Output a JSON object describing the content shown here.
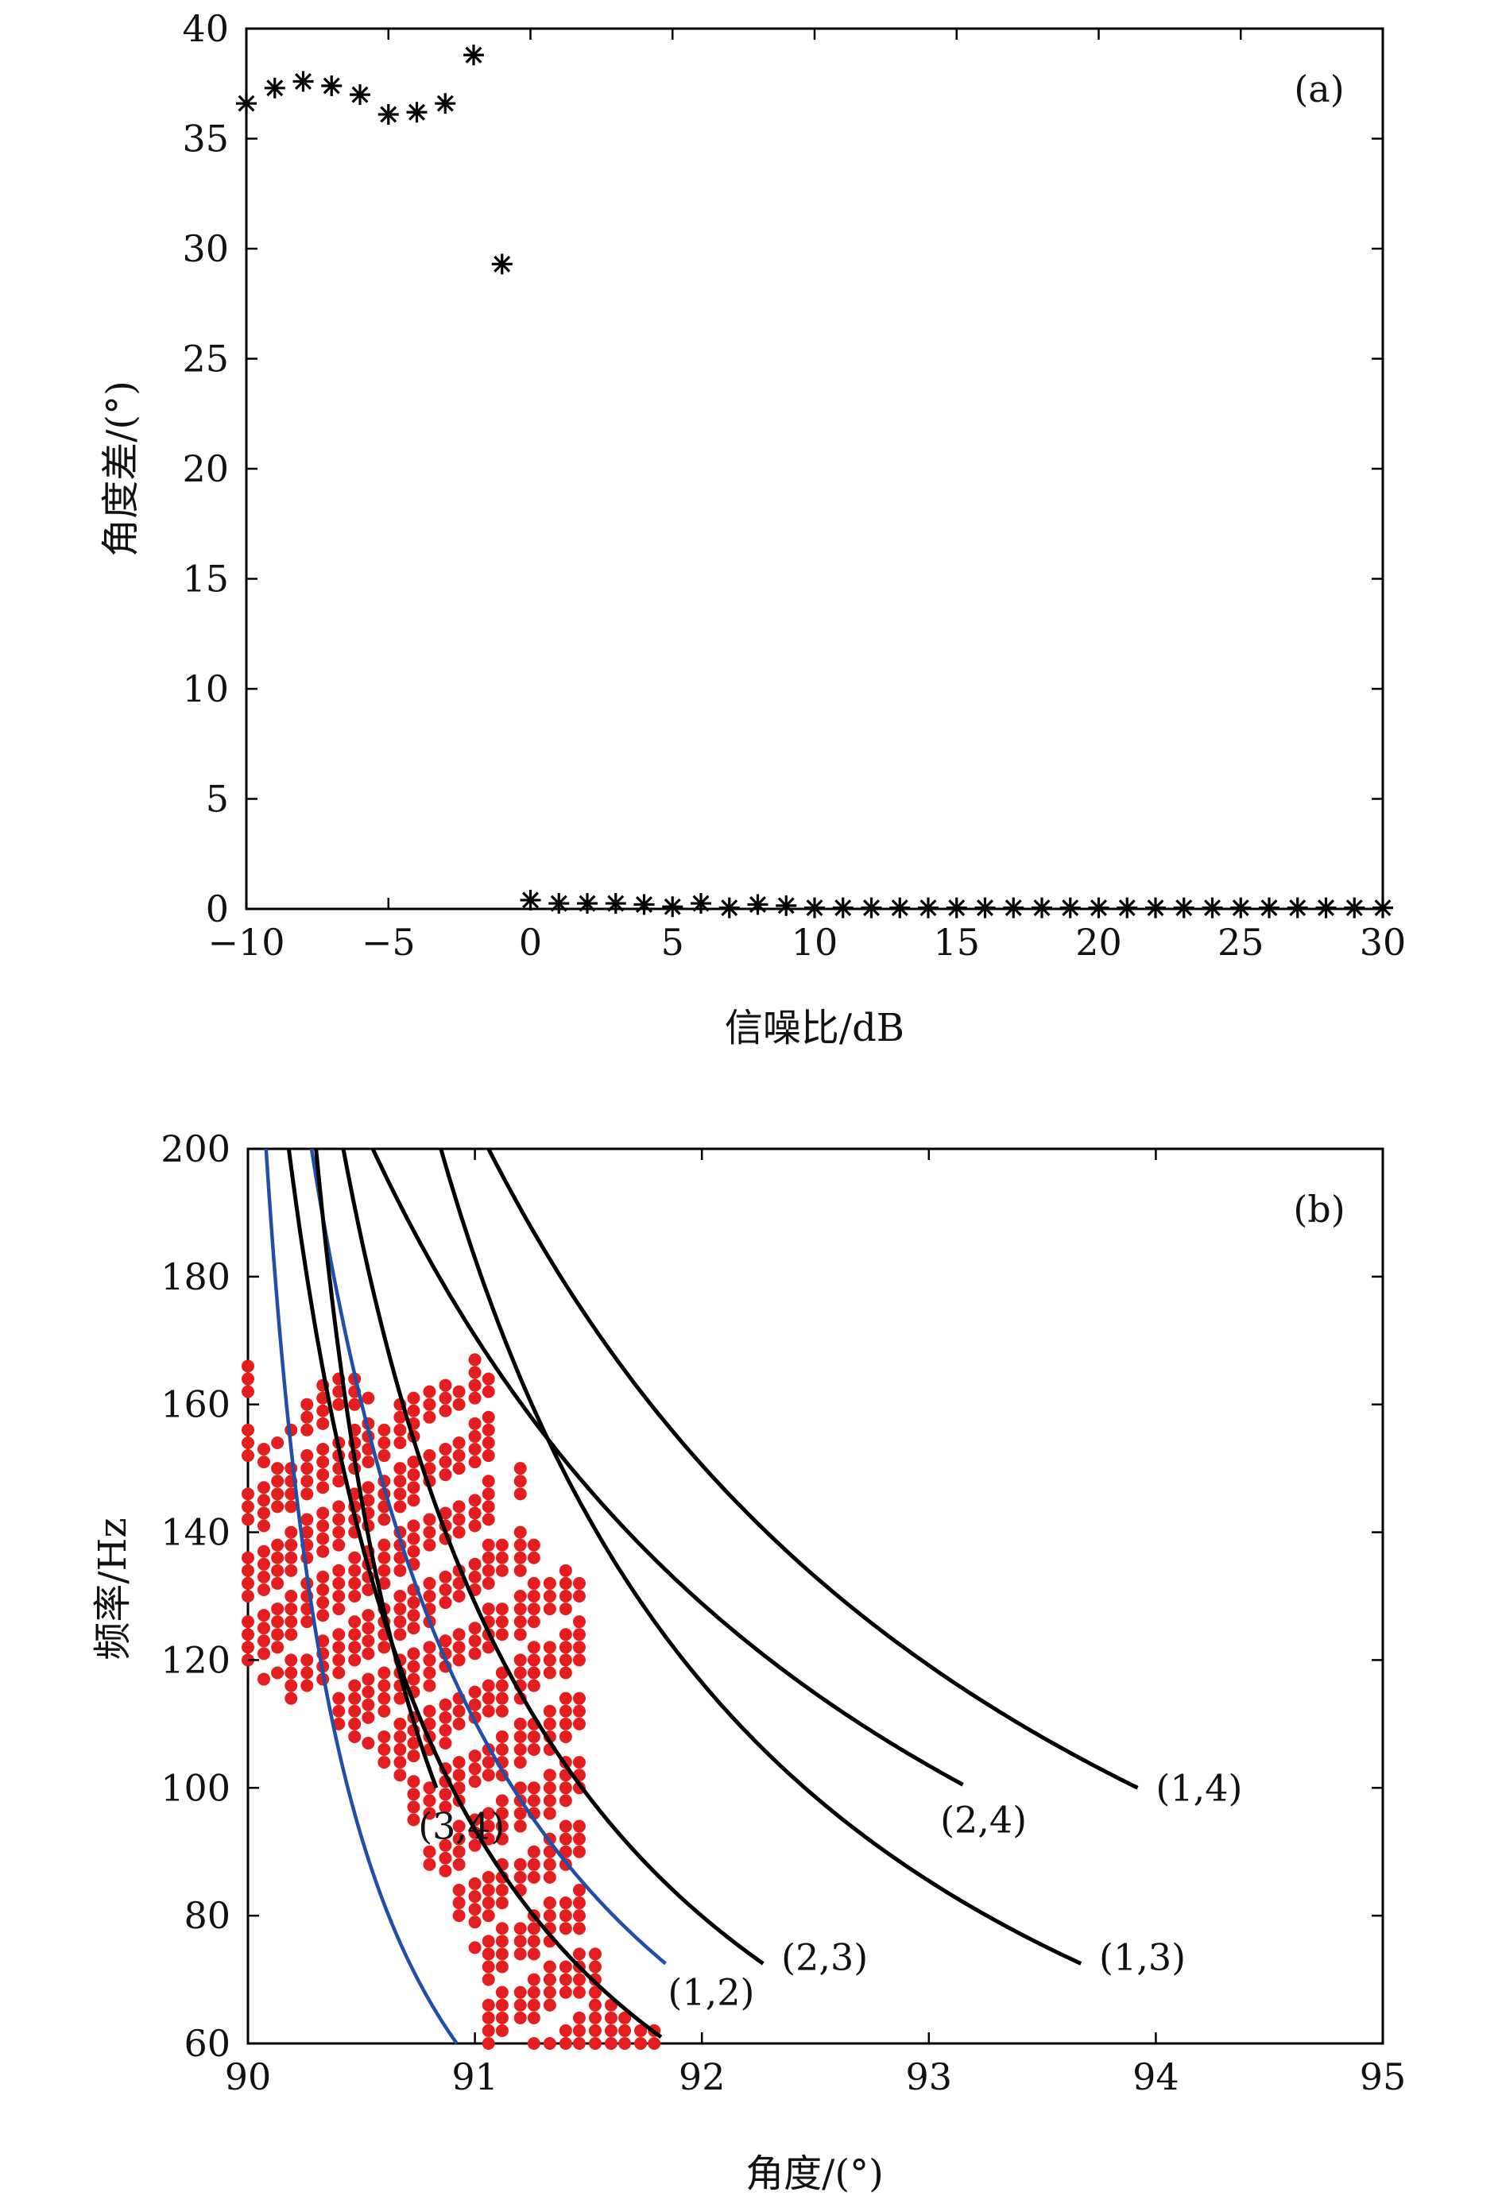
{
  "figure": {
    "panels": [
      "(a)",
      "(b)"
    ]
  },
  "chart_data": [
    {
      "type": "scatter",
      "panel_label": "(a)",
      "xlabel": "信噪比/dB",
      "ylabel": "角度差/(°)",
      "xlim": [
        -10,
        30
      ],
      "ylim": [
        0,
        40
      ],
      "xticks": [
        -10,
        -5,
        0,
        5,
        10,
        15,
        20,
        25,
        30
      ],
      "xtick_labels": [
        "−10",
        "−5",
        "0",
        "5",
        "10",
        "15",
        "20",
        "25",
        "30"
      ],
      "yticks": [
        0,
        5,
        10,
        15,
        20,
        25,
        30,
        35,
        40
      ],
      "ytick_labels": [
        "0",
        "5",
        "10",
        "15",
        "20",
        "25",
        "30",
        "35",
        "40"
      ],
      "grid": false,
      "marker": "asterisk",
      "marker_color": "#000000",
      "series": [
        {
          "x": [
            -10,
            -9,
            -8,
            -7,
            -6,
            -5,
            -4,
            -3,
            -2,
            -1,
            0,
            1,
            2,
            3,
            4,
            5,
            6,
            7,
            8,
            9,
            10,
            11,
            12,
            13,
            14,
            15,
            16,
            17,
            18,
            19,
            20,
            21,
            22,
            23,
            24,
            25,
            26,
            27,
            28,
            29,
            30
          ],
          "y": [
            36.6,
            37.3,
            37.6,
            37.4,
            37.0,
            36.1,
            36.2,
            36.6,
            38.8,
            29.3,
            0.4,
            0.25,
            0.25,
            0.25,
            0.2,
            0.1,
            0.25,
            0.05,
            0.2,
            0.15,
            0.05,
            0.05,
            0.05,
            0.05,
            0.05,
            0.05,
            0.05,
            0.05,
            0.05,
            0.05,
            0.05,
            0.05,
            0.05,
            0.05,
            0.05,
            0.05,
            0.05,
            0.05,
            0.05,
            0.05,
            0.05
          ]
        }
      ]
    },
    {
      "type": "line",
      "panel_label": "(b)",
      "xlabel": "角度/(°)",
      "ylabel": "频率/Hz",
      "xlim": [
        90,
        95
      ],
      "ylim": [
        60,
        200
      ],
      "xticks": [
        90,
        91,
        92,
        93,
        94,
        95
      ],
      "xtick_labels": [
        "90",
        "91",
        "92",
        "93",
        "94",
        "95"
      ],
      "yticks": [
        60,
        80,
        100,
        120,
        140,
        160,
        180,
        200
      ],
      "ytick_labels": [
        "60",
        "80",
        "100",
        "120",
        "140",
        "160",
        "180",
        "200"
      ],
      "grid": false,
      "colors": {
        "black_curve": "#000000",
        "blue_curve": "#1f4fa8",
        "red_points": "#e41e1e"
      },
      "black_curves": [
        {
          "label": "(1,2)",
          "x_end": 91.82,
          "y_end": 61,
          "x_top": 90.18,
          "label_x": 91.85,
          "label_y": 68
        },
        {
          "label": "(3,4)",
          "x_end": 90.83,
          "y_end": 100,
          "x_top": 90.3,
          "label_x": 90.75,
          "label_y": 94
        },
        {
          "label": "(2,3)",
          "x_end": 92.27,
          "y_end": 72.5,
          "x_top": 90.42,
          "label_x": 92.35,
          "label_y": 73.5
        },
        {
          "label": "(2,4)",
          "x_end": 93.15,
          "y_end": 100.5,
          "x_top": 90.55,
          "label_x": 93.05,
          "label_y": 95
        },
        {
          "label": "(1,3)",
          "x_end": 93.67,
          "y_end": 72.5,
          "x_top": 90.85,
          "label_x": 93.75,
          "label_y": 73.5
        },
        {
          "label": "(1,4)",
          "x_end": 93.92,
          "y_end": 100,
          "x_top": 91.06,
          "label_x": 94.0,
          "label_y": 100
        }
      ],
      "blue_curves": [
        {
          "x_end": 90.92,
          "y_end": 60,
          "x_top": 90.08
        },
        {
          "x_end": 91.84,
          "y_end": 72.5,
          "x_top": 90.28
        }
      ],
      "red_columns": [
        {
          "x": 90.0,
          "y_min": 116,
          "y_max": 171,
          "fill": 0.85
        },
        {
          "x": 90.07,
          "y_min": 117,
          "y_max": 154,
          "fill": 0.95
        },
        {
          "x": 90.13,
          "y_min": 118,
          "y_max": 155,
          "fill": 0.95
        },
        {
          "x": 90.19,
          "y_min": 114,
          "y_max": 156,
          "fill": 0.9
        },
        {
          "x": 90.26,
          "y_min": 114,
          "y_max": 160,
          "fill": 0.9
        },
        {
          "x": 90.33,
          "y_min": 113,
          "y_max": 164,
          "fill": 0.9
        },
        {
          "x": 90.4,
          "y_min": 110,
          "y_max": 165,
          "fill": 0.9
        },
        {
          "x": 90.47,
          "y_min": 108,
          "y_max": 165,
          "fill": 0.95
        },
        {
          "x": 90.53,
          "y_min": 107,
          "y_max": 162,
          "fill": 0.95
        },
        {
          "x": 90.6,
          "y_min": 104,
          "y_max": 157,
          "fill": 0.95
        },
        {
          "x": 90.67,
          "y_min": 100,
          "y_max": 160,
          "fill": 0.95
        },
        {
          "x": 90.73,
          "y_min": 95,
          "y_max": 161,
          "fill": 0.95
        },
        {
          "x": 90.8,
          "y_min": 88,
          "y_max": 165,
          "fill": 0.85
        },
        {
          "x": 90.87,
          "y_min": 85,
          "y_max": 168,
          "fill": 0.85
        },
        {
          "x": 90.93,
          "y_min": 80,
          "y_max": 162,
          "fill": 0.85
        },
        {
          "x": 91.0,
          "y_min": 75,
          "y_max": 168,
          "fill": 0.85
        },
        {
          "x": 91.06,
          "y_min": 60,
          "y_max": 164,
          "fill": 0.9
        },
        {
          "x": 91.12,
          "y_min": 60,
          "y_max": 140,
          "fill": 0.9
        },
        {
          "x": 91.2,
          "y_min": 60,
          "y_max": 150,
          "fill": 0.9
        },
        {
          "x": 91.26,
          "y_min": 60,
          "y_max": 139,
          "fill": 0.9
        },
        {
          "x": 91.33,
          "y_min": 60,
          "y_max": 136,
          "fill": 0.9
        },
        {
          "x": 91.4,
          "y_min": 60,
          "y_max": 136,
          "fill": 0.9
        },
        {
          "x": 91.46,
          "y_min": 60,
          "y_max": 133,
          "fill": 0.9
        },
        {
          "x": 91.53,
          "y_min": 60,
          "y_max": 75,
          "fill": 1.0
        },
        {
          "x": 91.6,
          "y_min": 60,
          "y_max": 66,
          "fill": 1.0
        },
        {
          "x": 91.66,
          "y_min": 60,
          "y_max": 64,
          "fill": 1.0
        },
        {
          "x": 91.73,
          "y_min": 60,
          "y_max": 63,
          "fill": 1.0
        },
        {
          "x": 91.79,
          "y_min": 60,
          "y_max": 62,
          "fill": 1.0
        }
      ]
    }
  ]
}
